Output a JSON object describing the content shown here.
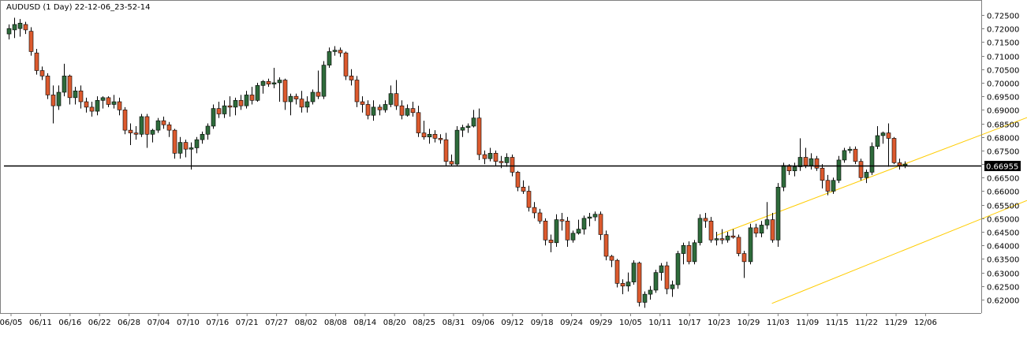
{
  "chart_data": {
    "type": "candlestick",
    "title": "AUDUSD (1 Day) 22-12-06_23-52-14",
    "ylim": [
      0.6175,
      0.7255
    ],
    "y_ticks": [
      "0.72500",
      "0.72000",
      "0.71500",
      "0.71000",
      "0.70500",
      "0.70000",
      "0.69500",
      "0.69000",
      "0.68500",
      "0.68000",
      "0.67500",
      "0.67000",
      "0.66500",
      "0.66000",
      "0.65500",
      "0.65000",
      "0.64500",
      "0.64000",
      "0.63500",
      "0.63000",
      "0.62500",
      "0.62000"
    ],
    "x_tick_labels": [
      "06/05",
      "06/11",
      "06/16",
      "06/22",
      "06/28",
      "07/04",
      "07/10",
      "07/16",
      "07/21",
      "07/27",
      "08/02",
      "08/08",
      "08/14",
      "08/20",
      "08/25",
      "08/31",
      "09/06",
      "09/12",
      "09/18",
      "09/24",
      "09/29",
      "10/05",
      "10/11",
      "10/17",
      "10/23",
      "10/29",
      "11/03",
      "11/09",
      "11/15",
      "11/22",
      "11/29",
      "12/06"
    ],
    "current_price": {
      "value": 0.66955,
      "label": "0.66955"
    },
    "colors": {
      "bull": "#2e6b3b",
      "bear": "#dc5a2e",
      "wick": "#000000",
      "channel": "#ffcc00",
      "price_line": "#000000",
      "axis": "#808080"
    },
    "channel": {
      "upper": [
        {
          "bar": 128,
          "price": 0.6437
        },
        {
          "bar": 191,
          "price": 0.6925
        }
      ],
      "lower": [
        {
          "bar": 138,
          "price": 0.6186
        },
        {
          "bar": 201,
          "price": 0.6705
        }
      ]
    },
    "candles": [
      {
        "o": 0.718,
        "h": 0.7215,
        "l": 0.716,
        "c": 0.72
      },
      {
        "o": 0.7195,
        "h": 0.724,
        "l": 0.7165,
        "c": 0.7215
      },
      {
        "o": 0.72,
        "h": 0.7235,
        "l": 0.717,
        "c": 0.722
      },
      {
        "o": 0.7215,
        "h": 0.7225,
        "l": 0.718,
        "c": 0.7195
      },
      {
        "o": 0.719,
        "h": 0.7205,
        "l": 0.71,
        "c": 0.7115
      },
      {
        "o": 0.711,
        "h": 0.7125,
        "l": 0.703,
        "c": 0.7045
      },
      {
        "o": 0.7045,
        "h": 0.706,
        "l": 0.701,
        "c": 0.7025
      },
      {
        "o": 0.7025,
        "h": 0.7035,
        "l": 0.694,
        "c": 0.6955
      },
      {
        "o": 0.6955,
        "h": 0.699,
        "l": 0.685,
        "c": 0.6915
      },
      {
        "o": 0.6915,
        "h": 0.699,
        "l": 0.69,
        "c": 0.6965
      },
      {
        "o": 0.6965,
        "h": 0.707,
        "l": 0.695,
        "c": 0.7025
      },
      {
        "o": 0.7025,
        "h": 0.703,
        "l": 0.692,
        "c": 0.6945
      },
      {
        "o": 0.6945,
        "h": 0.6985,
        "l": 0.692,
        "c": 0.697
      },
      {
        "o": 0.697,
        "h": 0.699,
        "l": 0.6905,
        "c": 0.693
      },
      {
        "o": 0.693,
        "h": 0.6945,
        "l": 0.689,
        "c": 0.691
      },
      {
        "o": 0.691,
        "h": 0.693,
        "l": 0.6875,
        "c": 0.6895
      },
      {
        "o": 0.6895,
        "h": 0.695,
        "l": 0.688,
        "c": 0.6935
      },
      {
        "o": 0.6935,
        "h": 0.695,
        "l": 0.6905,
        "c": 0.6945
      },
      {
        "o": 0.6945,
        "h": 0.695,
        "l": 0.691,
        "c": 0.692
      },
      {
        "o": 0.692,
        "h": 0.6955,
        "l": 0.6905,
        "c": 0.693
      },
      {
        "o": 0.693,
        "h": 0.6945,
        "l": 0.688,
        "c": 0.69
      },
      {
        "o": 0.69,
        "h": 0.691,
        "l": 0.681,
        "c": 0.6825
      },
      {
        "o": 0.6825,
        "h": 0.685,
        "l": 0.677,
        "c": 0.6815
      },
      {
        "o": 0.6815,
        "h": 0.684,
        "l": 0.679,
        "c": 0.681
      },
      {
        "o": 0.681,
        "h": 0.6885,
        "l": 0.68,
        "c": 0.6875
      },
      {
        "o": 0.6875,
        "h": 0.6885,
        "l": 0.676,
        "c": 0.681
      },
      {
        "o": 0.681,
        "h": 0.683,
        "l": 0.678,
        "c": 0.6825
      },
      {
        "o": 0.6825,
        "h": 0.687,
        "l": 0.6815,
        "c": 0.686
      },
      {
        "o": 0.686,
        "h": 0.6875,
        "l": 0.683,
        "c": 0.6845
      },
      {
        "o": 0.6845,
        "h": 0.6855,
        "l": 0.68,
        "c": 0.6825
      },
      {
        "o": 0.6825,
        "h": 0.683,
        "l": 0.672,
        "c": 0.674
      },
      {
        "o": 0.674,
        "h": 0.68,
        "l": 0.672,
        "c": 0.678
      },
      {
        "o": 0.678,
        "h": 0.679,
        "l": 0.6725,
        "c": 0.6755
      },
      {
        "o": 0.6755,
        "h": 0.678,
        "l": 0.668,
        "c": 0.676
      },
      {
        "o": 0.676,
        "h": 0.68,
        "l": 0.674,
        "c": 0.679
      },
      {
        "o": 0.679,
        "h": 0.682,
        "l": 0.6775,
        "c": 0.681
      },
      {
        "o": 0.681,
        "h": 0.685,
        "l": 0.679,
        "c": 0.684
      },
      {
        "o": 0.684,
        "h": 0.692,
        "l": 0.683,
        "c": 0.6905
      },
      {
        "o": 0.6905,
        "h": 0.693,
        "l": 0.687,
        "c": 0.6885
      },
      {
        "o": 0.6885,
        "h": 0.6935,
        "l": 0.687,
        "c": 0.6915
      },
      {
        "o": 0.6915,
        "h": 0.695,
        "l": 0.6875,
        "c": 0.691
      },
      {
        "o": 0.691,
        "h": 0.6945,
        "l": 0.688,
        "c": 0.6935
      },
      {
        "o": 0.6935,
        "h": 0.6955,
        "l": 0.69,
        "c": 0.6915
      },
      {
        "o": 0.6915,
        "h": 0.697,
        "l": 0.6905,
        "c": 0.6955
      },
      {
        "o": 0.6955,
        "h": 0.6985,
        "l": 0.692,
        "c": 0.6935
      },
      {
        "o": 0.6935,
        "h": 0.7,
        "l": 0.693,
        "c": 0.699
      },
      {
        "o": 0.699,
        "h": 0.701,
        "l": 0.696,
        "c": 0.7005
      },
      {
        "o": 0.7005,
        "h": 0.7015,
        "l": 0.6985,
        "c": 0.6995
      },
      {
        "o": 0.6995,
        "h": 0.7055,
        "l": 0.698,
        "c": 0.7
      },
      {
        "o": 0.7,
        "h": 0.702,
        "l": 0.693,
        "c": 0.701
      },
      {
        "o": 0.701,
        "h": 0.7015,
        "l": 0.69,
        "c": 0.693
      },
      {
        "o": 0.693,
        "h": 0.696,
        "l": 0.688,
        "c": 0.695
      },
      {
        "o": 0.695,
        "h": 0.696,
        "l": 0.692,
        "c": 0.694
      },
      {
        "o": 0.694,
        "h": 0.697,
        "l": 0.689,
        "c": 0.691
      },
      {
        "o": 0.691,
        "h": 0.695,
        "l": 0.689,
        "c": 0.693
      },
      {
        "o": 0.693,
        "h": 0.6975,
        "l": 0.692,
        "c": 0.6965
      },
      {
        "o": 0.6965,
        "h": 0.7045,
        "l": 0.694,
        "c": 0.695
      },
      {
        "o": 0.695,
        "h": 0.708,
        "l": 0.694,
        "c": 0.7065
      },
      {
        "o": 0.7065,
        "h": 0.713,
        "l": 0.7055,
        "c": 0.7115
      },
      {
        "o": 0.7115,
        "h": 0.7135,
        "l": 0.71,
        "c": 0.712
      },
      {
        "o": 0.712,
        "h": 0.713,
        "l": 0.7095,
        "c": 0.711
      },
      {
        "o": 0.711,
        "h": 0.7115,
        "l": 0.701,
        "c": 0.7025
      },
      {
        "o": 0.7025,
        "h": 0.705,
        "l": 0.699,
        "c": 0.701
      },
      {
        "o": 0.701,
        "h": 0.7025,
        "l": 0.691,
        "c": 0.693
      },
      {
        "o": 0.693,
        "h": 0.695,
        "l": 0.689,
        "c": 0.692
      },
      {
        "o": 0.692,
        "h": 0.6935,
        "l": 0.6865,
        "c": 0.688
      },
      {
        "o": 0.688,
        "h": 0.6935,
        "l": 0.686,
        "c": 0.691
      },
      {
        "o": 0.691,
        "h": 0.692,
        "l": 0.688,
        "c": 0.69
      },
      {
        "o": 0.69,
        "h": 0.6935,
        "l": 0.689,
        "c": 0.692
      },
      {
        "o": 0.692,
        "h": 0.699,
        "l": 0.691,
        "c": 0.696
      },
      {
        "o": 0.696,
        "h": 0.701,
        "l": 0.69,
        "c": 0.6915
      },
      {
        "o": 0.6915,
        "h": 0.6935,
        "l": 0.6865,
        "c": 0.688
      },
      {
        "o": 0.688,
        "h": 0.692,
        "l": 0.6875,
        "c": 0.6905
      },
      {
        "o": 0.6905,
        "h": 0.693,
        "l": 0.6875,
        "c": 0.689
      },
      {
        "o": 0.689,
        "h": 0.6915,
        "l": 0.68,
        "c": 0.6815
      },
      {
        "o": 0.6815,
        "h": 0.686,
        "l": 0.679,
        "c": 0.68
      },
      {
        "o": 0.68,
        "h": 0.683,
        "l": 0.6775,
        "c": 0.681
      },
      {
        "o": 0.681,
        "h": 0.6825,
        "l": 0.678,
        "c": 0.6795
      },
      {
        "o": 0.6795,
        "h": 0.681,
        "l": 0.6775,
        "c": 0.679
      },
      {
        "o": 0.679,
        "h": 0.6815,
        "l": 0.6695,
        "c": 0.671
      },
      {
        "o": 0.671,
        "h": 0.6735,
        "l": 0.6695,
        "c": 0.67
      },
      {
        "o": 0.67,
        "h": 0.684,
        "l": 0.6695,
        "c": 0.6825
      },
      {
        "o": 0.6825,
        "h": 0.6845,
        "l": 0.68,
        "c": 0.6835
      },
      {
        "o": 0.6835,
        "h": 0.685,
        "l": 0.6815,
        "c": 0.684
      },
      {
        "o": 0.684,
        "h": 0.69,
        "l": 0.6835,
        "c": 0.687
      },
      {
        "o": 0.687,
        "h": 0.6905,
        "l": 0.6715,
        "c": 0.6735
      },
      {
        "o": 0.6735,
        "h": 0.675,
        "l": 0.67,
        "c": 0.672
      },
      {
        "o": 0.672,
        "h": 0.676,
        "l": 0.671,
        "c": 0.674
      },
      {
        "o": 0.674,
        "h": 0.675,
        "l": 0.6695,
        "c": 0.671
      },
      {
        "o": 0.671,
        "h": 0.673,
        "l": 0.6685,
        "c": 0.6705
      },
      {
        "o": 0.6705,
        "h": 0.674,
        "l": 0.669,
        "c": 0.6725
      },
      {
        "o": 0.6725,
        "h": 0.6735,
        "l": 0.6655,
        "c": 0.667
      },
      {
        "o": 0.667,
        "h": 0.6675,
        "l": 0.66,
        "c": 0.6615
      },
      {
        "o": 0.6615,
        "h": 0.664,
        "l": 0.659,
        "c": 0.66
      },
      {
        "o": 0.66,
        "h": 0.662,
        "l": 0.6525,
        "c": 0.654
      },
      {
        "o": 0.654,
        "h": 0.656,
        "l": 0.65,
        "c": 0.652
      },
      {
        "o": 0.652,
        "h": 0.6535,
        "l": 0.648,
        "c": 0.649
      },
      {
        "o": 0.649,
        "h": 0.65,
        "l": 0.64,
        "c": 0.642
      },
      {
        "o": 0.642,
        "h": 0.644,
        "l": 0.6375,
        "c": 0.641
      },
      {
        "o": 0.641,
        "h": 0.6515,
        "l": 0.6395,
        "c": 0.6495
      },
      {
        "o": 0.6495,
        "h": 0.652,
        "l": 0.6455,
        "c": 0.649
      },
      {
        "o": 0.649,
        "h": 0.6505,
        "l": 0.6395,
        "c": 0.642
      },
      {
        "o": 0.642,
        "h": 0.6455,
        "l": 0.641,
        "c": 0.6445
      },
      {
        "o": 0.6445,
        "h": 0.6495,
        "l": 0.644,
        "c": 0.646
      },
      {
        "o": 0.646,
        "h": 0.651,
        "l": 0.644,
        "c": 0.65
      },
      {
        "o": 0.65,
        "h": 0.652,
        "l": 0.647,
        "c": 0.6505
      },
      {
        "o": 0.6505,
        "h": 0.6525,
        "l": 0.649,
        "c": 0.6515
      },
      {
        "o": 0.6515,
        "h": 0.6525,
        "l": 0.642,
        "c": 0.644
      },
      {
        "o": 0.644,
        "h": 0.6455,
        "l": 0.6345,
        "c": 0.636
      },
      {
        "o": 0.636,
        "h": 0.6365,
        "l": 0.632,
        "c": 0.6345
      },
      {
        "o": 0.6345,
        "h": 0.635,
        "l": 0.6245,
        "c": 0.626
      },
      {
        "o": 0.626,
        "h": 0.6275,
        "l": 0.622,
        "c": 0.625
      },
      {
        "o": 0.625,
        "h": 0.63,
        "l": 0.623,
        "c": 0.6265
      },
      {
        "o": 0.6265,
        "h": 0.6345,
        "l": 0.6255,
        "c": 0.6335
      },
      {
        "o": 0.6335,
        "h": 0.634,
        "l": 0.6175,
        "c": 0.619
      },
      {
        "o": 0.619,
        "h": 0.623,
        "l": 0.617,
        "c": 0.622
      },
      {
        "o": 0.622,
        "h": 0.625,
        "l": 0.62,
        "c": 0.6235
      },
      {
        "o": 0.6235,
        "h": 0.631,
        "l": 0.6225,
        "c": 0.63
      },
      {
        "o": 0.63,
        "h": 0.6335,
        "l": 0.627,
        "c": 0.6325
      },
      {
        "o": 0.6325,
        "h": 0.634,
        "l": 0.622,
        "c": 0.624
      },
      {
        "o": 0.624,
        "h": 0.627,
        "l": 0.621,
        "c": 0.6255
      },
      {
        "o": 0.6255,
        "h": 0.638,
        "l": 0.624,
        "c": 0.637
      },
      {
        "o": 0.637,
        "h": 0.641,
        "l": 0.633,
        "c": 0.64
      },
      {
        "o": 0.64,
        "h": 0.6415,
        "l": 0.633,
        "c": 0.634
      },
      {
        "o": 0.634,
        "h": 0.642,
        "l": 0.633,
        "c": 0.641
      },
      {
        "o": 0.641,
        "h": 0.6515,
        "l": 0.64,
        "c": 0.65
      },
      {
        "o": 0.65,
        "h": 0.652,
        "l": 0.6465,
        "c": 0.649
      },
      {
        "o": 0.649,
        "h": 0.6505,
        "l": 0.641,
        "c": 0.642
      },
      {
        "o": 0.642,
        "h": 0.645,
        "l": 0.64,
        "c": 0.6425
      },
      {
        "o": 0.6425,
        "h": 0.646,
        "l": 0.6405,
        "c": 0.642
      },
      {
        "o": 0.642,
        "h": 0.645,
        "l": 0.641,
        "c": 0.6435
      },
      {
        "o": 0.6435,
        "h": 0.646,
        "l": 0.6425,
        "c": 0.643
      },
      {
        "o": 0.643,
        "h": 0.644,
        "l": 0.636,
        "c": 0.637
      },
      {
        "o": 0.637,
        "h": 0.638,
        "l": 0.628,
        "c": 0.634
      },
      {
        "o": 0.634,
        "h": 0.648,
        "l": 0.633,
        "c": 0.6465
      },
      {
        "o": 0.6465,
        "h": 0.648,
        "l": 0.643,
        "c": 0.6445
      },
      {
        "o": 0.6445,
        "h": 0.649,
        "l": 0.643,
        "c": 0.6475
      },
      {
        "o": 0.6475,
        "h": 0.656,
        "l": 0.646,
        "c": 0.6495
      },
      {
        "o": 0.6495,
        "h": 0.652,
        "l": 0.641,
        "c": 0.642
      },
      {
        "o": 0.642,
        "h": 0.663,
        "l": 0.6395,
        "c": 0.6615
      },
      {
        "o": 0.6615,
        "h": 0.6705,
        "l": 0.66,
        "c": 0.6695
      },
      {
        "o": 0.6695,
        "h": 0.67,
        "l": 0.666,
        "c": 0.6675
      },
      {
        "o": 0.6675,
        "h": 0.6705,
        "l": 0.6655,
        "c": 0.669
      },
      {
        "o": 0.669,
        "h": 0.6795,
        "l": 0.6675,
        "c": 0.6725
      },
      {
        "o": 0.6725,
        "h": 0.676,
        "l": 0.6685,
        "c": 0.6695
      },
      {
        "o": 0.6695,
        "h": 0.674,
        "l": 0.668,
        "c": 0.672
      },
      {
        "o": 0.672,
        "h": 0.673,
        "l": 0.6675,
        "c": 0.6685
      },
      {
        "o": 0.6685,
        "h": 0.67,
        "l": 0.661,
        "c": 0.664
      },
      {
        "o": 0.664,
        "h": 0.666,
        "l": 0.6585,
        "c": 0.66
      },
      {
        "o": 0.66,
        "h": 0.665,
        "l": 0.659,
        "c": 0.664
      },
      {
        "o": 0.664,
        "h": 0.673,
        "l": 0.663,
        "c": 0.6715
      },
      {
        "o": 0.6715,
        "h": 0.676,
        "l": 0.6705,
        "c": 0.675
      },
      {
        "o": 0.675,
        "h": 0.6765,
        "l": 0.674,
        "c": 0.6755
      },
      {
        "o": 0.6755,
        "h": 0.6765,
        "l": 0.67,
        "c": 0.671
      },
      {
        "o": 0.671,
        "h": 0.672,
        "l": 0.664,
        "c": 0.665
      },
      {
        "o": 0.665,
        "h": 0.668,
        "l": 0.663,
        "c": 0.667
      },
      {
        "o": 0.667,
        "h": 0.678,
        "l": 0.666,
        "c": 0.6765
      },
      {
        "o": 0.6765,
        "h": 0.684,
        "l": 0.6755,
        "c": 0.6805
      },
      {
        "o": 0.6805,
        "h": 0.682,
        "l": 0.6775,
        "c": 0.6815
      },
      {
        "o": 0.6815,
        "h": 0.685,
        "l": 0.669,
        "c": 0.6795
      },
      {
        "o": 0.6795,
        "h": 0.68,
        "l": 0.67,
        "c": 0.6705
      },
      {
        "o": 0.6705,
        "h": 0.672,
        "l": 0.668,
        "c": 0.6695
      },
      {
        "o": 0.6695,
        "h": 0.671,
        "l": 0.6685,
        "c": 0.67
      }
    ]
  }
}
